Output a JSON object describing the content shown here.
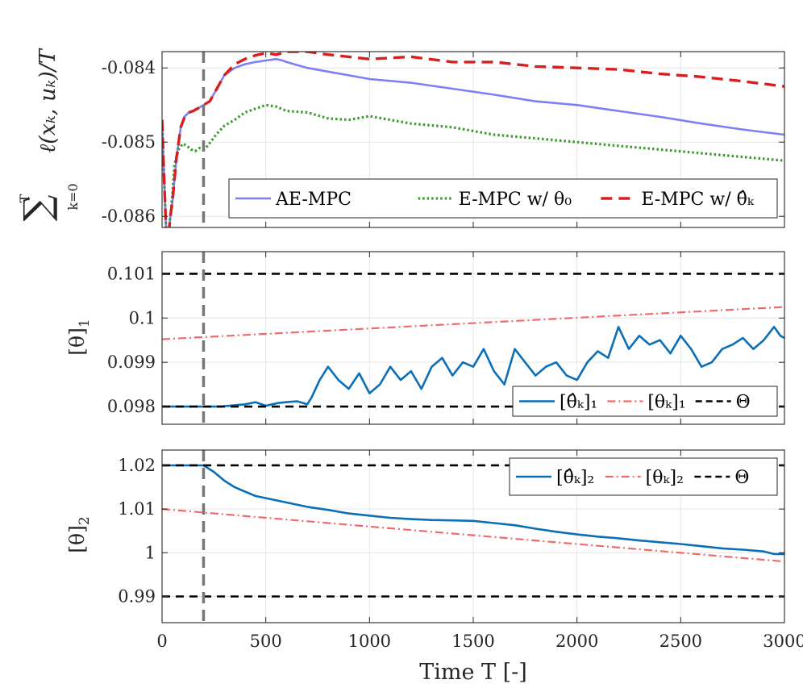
{
  "chart_data": [
    {
      "type": "line",
      "ylabel": "∑ k=0..T ℓ(xₖ, uₖ)/T",
      "ylabel_parts": {
        "sum": "∑",
        "upper": "T",
        "lower": "k=0",
        "body": "ℓ(xₖ, uₖ)/T"
      },
      "xlim": [
        0,
        3000
      ],
      "ylim": [
        -0.08615,
        -0.08378
      ],
      "yticks": [
        -0.086,
        -0.085,
        -0.084
      ],
      "ytick_labels": [
        "-0.086",
        "-0.085",
        "-0.084"
      ],
      "grid": true,
      "vline_x": 200,
      "legend_position": "bottom-right",
      "series": [
        {
          "name": "AE-MPC",
          "legend_label": "AE-MPC",
          "color": "#7f7ff5",
          "style": "solid",
          "x": [
            0,
            10,
            20,
            30,
            40,
            50,
            70,
            90,
            110,
            130,
            150,
            170,
            200,
            230,
            260,
            300,
            350,
            400,
            450,
            500,
            550,
            580,
            600,
            700,
            800,
            900,
            1000,
            1200,
            1400,
            1600,
            1800,
            2000,
            2200,
            2400,
            2600,
            2800,
            3000
          ],
          "y": [
            -0.0847,
            -0.0855,
            -0.0862,
            -0.0863,
            -0.086,
            -0.0858,
            -0.0852,
            -0.0848,
            -0.08465,
            -0.0846,
            -0.08458,
            -0.08455,
            -0.0845,
            -0.08445,
            -0.0843,
            -0.0841,
            -0.084,
            -0.08395,
            -0.08392,
            -0.0839,
            -0.08388,
            -0.0839,
            -0.08392,
            -0.084,
            -0.08405,
            -0.0841,
            -0.08415,
            -0.0842,
            -0.08428,
            -0.08436,
            -0.08445,
            -0.0845,
            -0.08458,
            -0.08466,
            -0.08475,
            -0.08483,
            -0.0849
          ]
        },
        {
          "name": "E-MPC w/ θ0",
          "legend_label": "E-MPC w/ θ₀",
          "color": "#3c9a2e",
          "style": "dotted",
          "x": [
            0,
            10,
            20,
            30,
            40,
            50,
            60,
            80,
            100,
            120,
            140,
            160,
            180,
            200,
            220,
            260,
            300,
            350,
            400,
            450,
            500,
            550,
            600,
            700,
            800,
            900,
            1000,
            1200,
            1400,
            1600,
            1800,
            2000,
            2200,
            2400,
            2600,
            2800,
            3000
          ],
          "y": [
            -0.0847,
            -0.0855,
            -0.0862,
            -0.0863,
            -0.086,
            -0.0857,
            -0.0853,
            -0.0851,
            -0.08502,
            -0.08505,
            -0.0851,
            -0.08512,
            -0.08508,
            -0.0851,
            -0.08505,
            -0.0849,
            -0.08478,
            -0.0847,
            -0.0846,
            -0.08455,
            -0.0845,
            -0.08452,
            -0.08458,
            -0.0846,
            -0.08468,
            -0.0847,
            -0.08465,
            -0.08475,
            -0.0848,
            -0.0849,
            -0.08495,
            -0.085,
            -0.08505,
            -0.0851,
            -0.08515,
            -0.0852,
            -0.08525
          ]
        },
        {
          "name": "E-MPC w/ θ̂k",
          "legend_label": "E-MPC w/ θ̂ₖ",
          "color": "#d62020",
          "style": "dashed",
          "x": [
            0,
            10,
            20,
            30,
            40,
            50,
            70,
            90,
            110,
            130,
            150,
            170,
            200,
            230,
            260,
            300,
            350,
            400,
            450,
            500,
            550,
            580,
            600,
            700,
            800,
            900,
            1000,
            1200,
            1400,
            1600,
            1800,
            2000,
            2200,
            2400,
            2600,
            2800,
            3000
          ],
          "y": [
            -0.0847,
            -0.0855,
            -0.0862,
            -0.0863,
            -0.086,
            -0.0858,
            -0.0852,
            -0.0848,
            -0.08465,
            -0.0846,
            -0.08458,
            -0.08455,
            -0.0845,
            -0.08445,
            -0.0843,
            -0.0841,
            -0.08395,
            -0.08388,
            -0.08383,
            -0.0838,
            -0.08382,
            -0.0838,
            -0.08378,
            -0.08378,
            -0.08382,
            -0.08385,
            -0.08388,
            -0.08385,
            -0.08392,
            -0.08392,
            -0.08398,
            -0.084,
            -0.08402,
            -0.08408,
            -0.08412,
            -0.08418,
            -0.08425
          ]
        }
      ]
    },
    {
      "type": "line",
      "ylabel": "[θ]₁",
      "ylabel_parts": {
        "base": "[θ]",
        "sub": "1"
      },
      "xlim": [
        0,
        3000
      ],
      "ylim": [
        0.0976,
        0.1015
      ],
      "yticks": [
        0.098,
        0.099,
        0.1,
        0.101
      ],
      "ytick_labels": [
        "0.098",
        "0.099",
        "0.1",
        "0.101"
      ],
      "grid": true,
      "vline_x": 200,
      "legend_position": "bottom-right",
      "series": [
        {
          "name": "[θ̂k]1",
          "legend_label": "[θ̂ₖ]₁",
          "color": "#0b6fb8",
          "style": "solid",
          "x": [
            0,
            200,
            280,
            400,
            450,
            500,
            560,
            600,
            650,
            700,
            720,
            760,
            800,
            850,
            900,
            950,
            1000,
            1050,
            1100,
            1150,
            1200,
            1250,
            1300,
            1350,
            1400,
            1450,
            1500,
            1550,
            1600,
            1650,
            1700,
            1750,
            1800,
            1850,
            1900,
            1950,
            2000,
            2050,
            2100,
            2150,
            2200,
            2250,
            2300,
            2350,
            2400,
            2450,
            2500,
            2550,
            2600,
            2650,
            2700,
            2750,
            2800,
            2850,
            2900,
            2950,
            2980,
            3000
          ],
          "y": [
            0.098,
            0.098,
            0.098,
            0.09805,
            0.0981,
            0.09802,
            0.09808,
            0.0981,
            0.09812,
            0.09805,
            0.0982,
            0.0986,
            0.0989,
            0.0986,
            0.0984,
            0.09875,
            0.0983,
            0.0985,
            0.0989,
            0.0986,
            0.0988,
            0.0984,
            0.0989,
            0.0991,
            0.0987,
            0.099,
            0.0989,
            0.0993,
            0.0988,
            0.0985,
            0.0993,
            0.099,
            0.0987,
            0.0989,
            0.099,
            0.0987,
            0.0986,
            0.099,
            0.09925,
            0.0991,
            0.0998,
            0.0993,
            0.0996,
            0.0994,
            0.0995,
            0.0992,
            0.0996,
            0.0993,
            0.0989,
            0.099,
            0.0993,
            0.0994,
            0.09955,
            0.0993,
            0.0995,
            0.0998,
            0.0996,
            0.09955
          ]
        },
        {
          "name": "[θk]1",
          "legend_label": "[θₖ]₁",
          "color": "#f06a6a",
          "style": "dashdot",
          "x": [
            0,
            3000
          ],
          "y": [
            0.09952,
            0.10025
          ]
        },
        {
          "name": "Θ",
          "legend_label": "Θ",
          "color": "#000000",
          "style": "dashed",
          "bounds": [
            0.098,
            0.101
          ]
        }
      ]
    },
    {
      "type": "line",
      "ylabel": "[θ]₂",
      "ylabel_parts": {
        "base": "[θ]",
        "sub": "2"
      },
      "xlabel": "Time T [-]",
      "xlim": [
        0,
        3000
      ],
      "ylim": [
        0.984,
        1.0235
      ],
      "xticks": [
        0,
        500,
        1000,
        1500,
        2000,
        2500,
        3000
      ],
      "xtick_labels": [
        "0",
        "500",
        "1000",
        "1500",
        "2000",
        "2500",
        "3000"
      ],
      "yticks": [
        0.99,
        1,
        1.01,
        1.02
      ],
      "ytick_labels": [
        "0.99",
        "1",
        "1.01",
        "1.02"
      ],
      "grid": true,
      "vline_x": 200,
      "legend_position": "top-right",
      "series": [
        {
          "name": "[θ̂k]2",
          "legend_label": "[θ̂ₖ]₂",
          "color": "#0b6fb8",
          "style": "solid",
          "x": [
            0,
            200,
            250,
            300,
            350,
            400,
            450,
            500,
            600,
            700,
            800,
            900,
            1000,
            1100,
            1200,
            1300,
            1400,
            1500,
            1600,
            1700,
            1800,
            1900,
            2000,
            2100,
            2200,
            2300,
            2400,
            2500,
            2600,
            2700,
            2800,
            2900,
            2950,
            3000
          ],
          "y": [
            1.02,
            1.02,
            1.0185,
            1.0165,
            1.015,
            1.014,
            1.013,
            1.0125,
            1.0115,
            1.0105,
            1.0098,
            1.009,
            1.0085,
            1.008,
            1.0077,
            1.0075,
            1.0074,
            1.0073,
            1.0068,
            1.0063,
            1.0055,
            1.0048,
            1.0042,
            1.0037,
            1.0033,
            1.0028,
            1.0024,
            1.002,
            1.0015,
            1.001,
            1.0007,
            1.0003,
            0.9997,
            0.9997
          ]
        },
        {
          "name": "[θk]2",
          "legend_label": "[θₖ]₂",
          "color": "#f06a6a",
          "style": "dashdot",
          "x": [
            0,
            3000
          ],
          "y": [
            1.01,
            0.998
          ]
        },
        {
          "name": "Θ",
          "legend_label": "Θ",
          "color": "#000000",
          "style": "dashed",
          "bounds": [
            0.99,
            1.02
          ]
        }
      ]
    }
  ]
}
